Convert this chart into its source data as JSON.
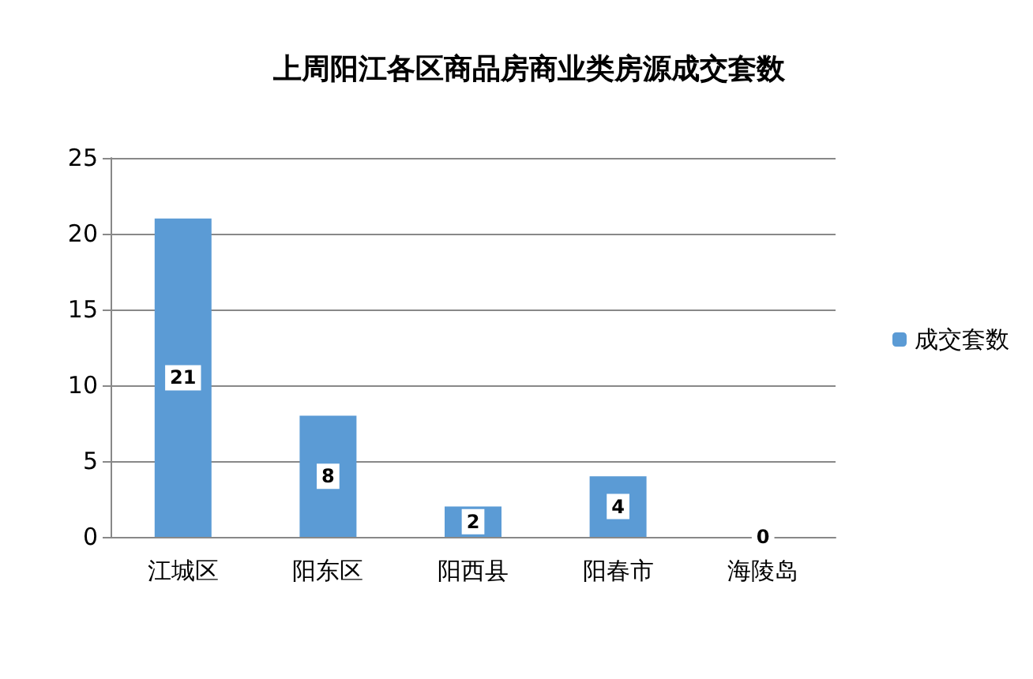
{
  "chart_data": {
    "type": "bar",
    "title": "上周阳江各区商品房商业类房源成交套数",
    "categories": [
      "江城区",
      "阳东区",
      "阳西县",
      "阳春市",
      "海陵岛"
    ],
    "series": [
      {
        "name": "成交套数",
        "color": "#5b9bd5",
        "values": [
          21,
          8,
          2,
          4,
          0
        ]
      }
    ],
    "ylim": [
      0,
      25
    ],
    "yticks": [
      0,
      5,
      10,
      15,
      20,
      25
    ],
    "grid": "y",
    "legend": "right",
    "data_labels": true
  }
}
